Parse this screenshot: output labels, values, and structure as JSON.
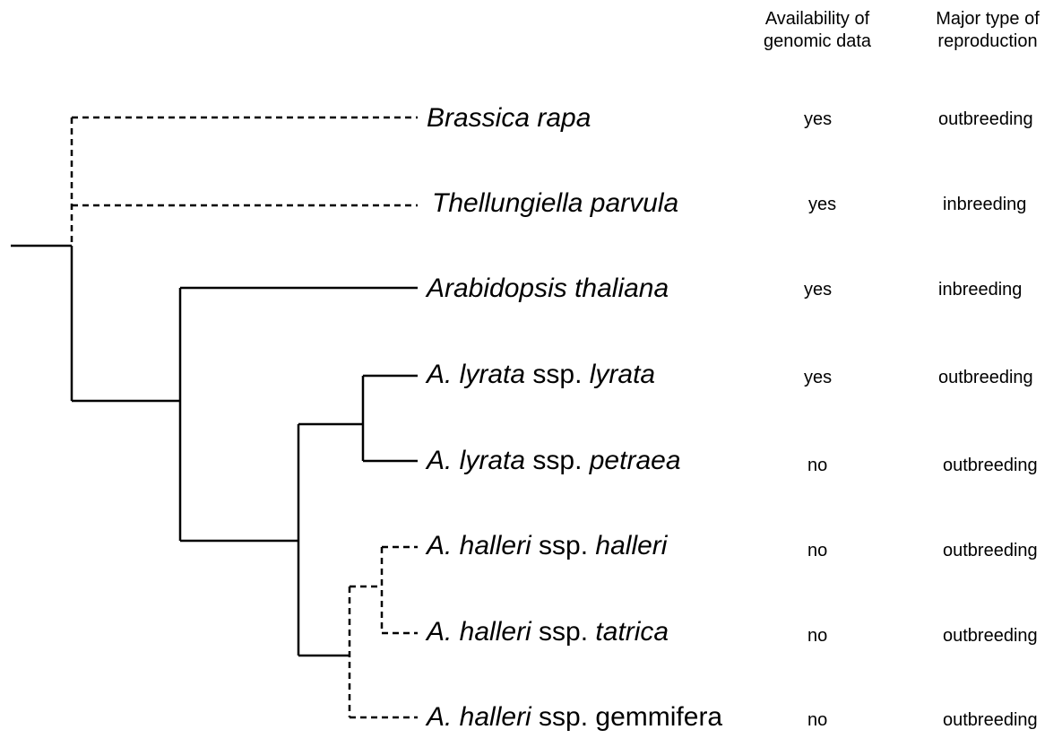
{
  "headers": {
    "genomic": [
      "Availability of",
      "genomic data"
    ],
    "reproduction": [
      "Major type of",
      "reproduction"
    ]
  },
  "taxa": [
    {
      "parts": [
        {
          "text": "Brassica rapa",
          "italic": true
        }
      ],
      "genomic": "yes",
      "reproduction": "outbreeding"
    },
    {
      "parts": [
        {
          "text": "Thellungiella parvula",
          "italic": true
        }
      ],
      "genomic": "yes",
      "reproduction": "inbreeding"
    },
    {
      "parts": [
        {
          "text": "Arabidopsis thaliana",
          "italic": true
        }
      ],
      "genomic": "yes",
      "reproduction": "inbreeding"
    },
    {
      "parts": [
        {
          "text": "A. lyrata",
          "italic": true
        },
        {
          "text": " ssp. ",
          "italic": false
        },
        {
          "text": "lyrata",
          "italic": true
        }
      ],
      "genomic": "yes",
      "reproduction": "outbreeding"
    },
    {
      "parts": [
        {
          "text": "A. lyrata",
          "italic": true
        },
        {
          "text": " ssp. ",
          "italic": false
        },
        {
          "text": "petraea",
          "italic": true
        }
      ],
      "genomic": "no",
      "reproduction": "outbreeding"
    },
    {
      "parts": [
        {
          "text": "A. halleri",
          "italic": true
        },
        {
          "text": " ssp. ",
          "italic": false
        },
        {
          "text": "halleri",
          "italic": true
        }
      ],
      "genomic": "no",
      "reproduction": "outbreeding"
    },
    {
      "parts": [
        {
          "text": "A. halleri",
          "italic": true
        },
        {
          "text": " ssp. ",
          "italic": false
        },
        {
          "text": "tatrica",
          "italic": true
        }
      ],
      "genomic": "no",
      "reproduction": "outbreeding"
    },
    {
      "parts": [
        {
          "text": "A. halleri",
          "italic": true
        },
        {
          "text": " ssp. gemmifera",
          "italic": false
        }
      ],
      "genomic": "no",
      "reproduction": "outbreeding"
    }
  ],
  "colors": {
    "line": "#000000",
    "text": "#000000",
    "background": "#ffffff"
  }
}
